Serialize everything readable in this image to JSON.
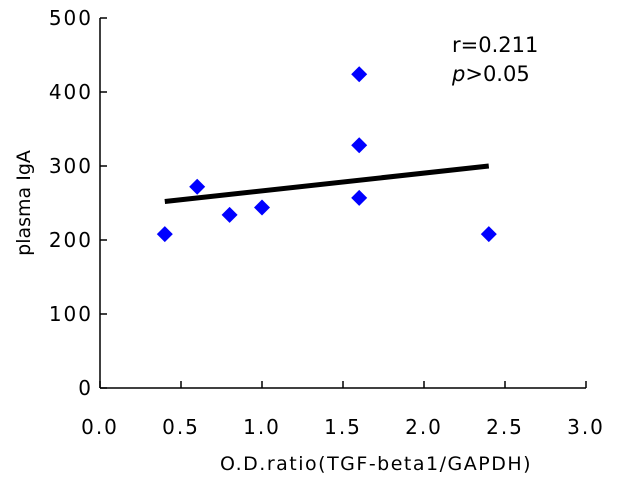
{
  "chart_data": {
    "type": "scatter",
    "title": "",
    "xlabel": "O.D.ratio(TGF-beta1/GAPDH)",
    "ylabel": "plasma IgA",
    "xlim": [
      0.0,
      3.0
    ],
    "ylim": [
      0,
      500
    ],
    "xticks": [
      "0.0",
      "0.5",
      "1.0",
      "1.5",
      "2.0",
      "2.5",
      "3.0"
    ],
    "yticks": [
      "0",
      "100",
      "200",
      "300",
      "400",
      "500"
    ],
    "points": [
      {
        "x": 0.4,
        "y": 208
      },
      {
        "x": 0.6,
        "y": 272
      },
      {
        "x": 0.8,
        "y": 234
      },
      {
        "x": 1.0,
        "y": 244
      },
      {
        "x": 1.6,
        "y": 424
      },
      {
        "x": 1.6,
        "y": 328
      },
      {
        "x": 1.6,
        "y": 257
      },
      {
        "x": 2.4,
        "y": 208
      }
    ],
    "regression_line": {
      "x": [
        0.4,
        2.4
      ],
      "y": [
        252,
        300
      ]
    },
    "annotations": {
      "r": "r=0.211",
      "p_symbol": "p",
      "p_rest": ">0.05"
    },
    "marker_color": "#0000ff",
    "line_color": "#000000",
    "grid": false,
    "legend": "none"
  }
}
